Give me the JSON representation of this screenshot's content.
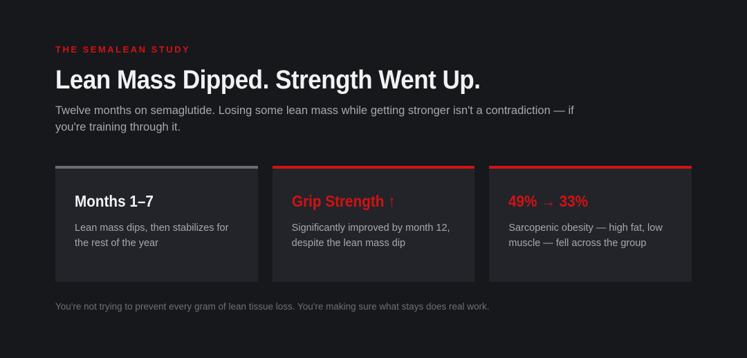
{
  "eyebrow": "THE SEMALEAN STUDY",
  "title": "Lean Mass Dipped. Strength Went Up.",
  "subtitle": "Twelve months on semaglutide. Losing some lean mass while getting stronger isn't a contradiction — if you're training through it.",
  "cards": [
    {
      "heading": "Months 1–7",
      "text": "Lean mass dips, then stabilizes for the rest of the year"
    },
    {
      "heading": "Grip Strength ↑",
      "text": "Significantly improved by month 12, despite the lean mass dip"
    },
    {
      "heading": "49% → 33%",
      "text": "Sarcopenic obesity — high fat, low muscle — fell across the group"
    }
  ],
  "footer": "You're not trying to prevent every gram of lean tissue loss. You're making sure what stays does real work."
}
